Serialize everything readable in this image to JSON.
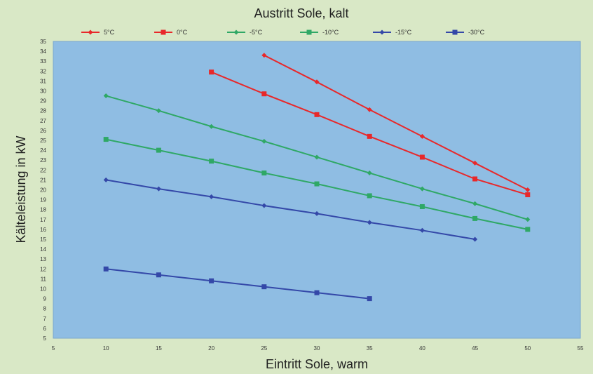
{
  "chart_data": {
    "type": "line",
    "title": "Austritt Sole, kalt",
    "xlabel": "Eintritt Sole, warm",
    "ylabel": "Kälteleistung in kW",
    "xlim": [
      5,
      55
    ],
    "ylim": [
      5,
      35
    ],
    "x_ticks": [
      5,
      10,
      15,
      20,
      25,
      30,
      35,
      40,
      45,
      50,
      55
    ],
    "y_ticks": [
      5,
      6,
      7,
      8,
      9,
      10,
      11,
      12,
      13,
      14,
      15,
      16,
      17,
      18,
      19,
      20,
      21,
      22,
      23,
      24,
      25,
      26,
      27,
      28,
      29,
      30,
      31,
      32,
      33,
      34,
      35
    ],
    "grid": false,
    "legend_position": "top",
    "background_color": "#d9e8c6",
    "plot_background_color": "#8fbde3",
    "series": [
      {
        "name": "5°C",
        "color": "#e8282a",
        "marker": "diamond",
        "x": [
          25,
          30,
          35,
          40,
          45,
          50
        ],
        "y": [
          33.6,
          30.9,
          28.1,
          25.4,
          22.7,
          20.0
        ]
      },
      {
        "name": "0°C",
        "color": "#e8282a",
        "marker": "square",
        "x": [
          20,
          25,
          30,
          35,
          40,
          45,
          50
        ],
        "y": [
          31.9,
          29.7,
          27.6,
          25.4,
          23.3,
          21.1,
          19.5
        ]
      },
      {
        "name": "-5°C",
        "color": "#2fa866",
        "marker": "diamond",
        "x": [
          10,
          15,
          20,
          25,
          30,
          35,
          40,
          45,
          50
        ],
        "y": [
          29.5,
          28.0,
          26.4,
          24.9,
          23.3,
          21.7,
          20.1,
          18.6,
          17.0
        ]
      },
      {
        "name": "-10°C",
        "color": "#2fa866",
        "marker": "square",
        "x": [
          10,
          15,
          20,
          25,
          30,
          35,
          40,
          45,
          50
        ],
        "y": [
          25.1,
          24.0,
          22.9,
          21.7,
          20.6,
          19.4,
          18.3,
          17.1,
          16.0
        ]
      },
      {
        "name": "-15°C",
        "color": "#3448a8",
        "marker": "diamond",
        "x": [
          10,
          15,
          20,
          25,
          30,
          35,
          40,
          45
        ],
        "y": [
          21.0,
          20.1,
          19.3,
          18.4,
          17.6,
          16.7,
          15.9,
          15.0
        ]
      },
      {
        "name": "-30°C",
        "color": "#3448a8",
        "marker": "square",
        "x": [
          10,
          15,
          20,
          25,
          30,
          35
        ],
        "y": [
          12.0,
          11.4,
          10.8,
          10.2,
          9.6,
          9.0
        ]
      }
    ]
  }
}
